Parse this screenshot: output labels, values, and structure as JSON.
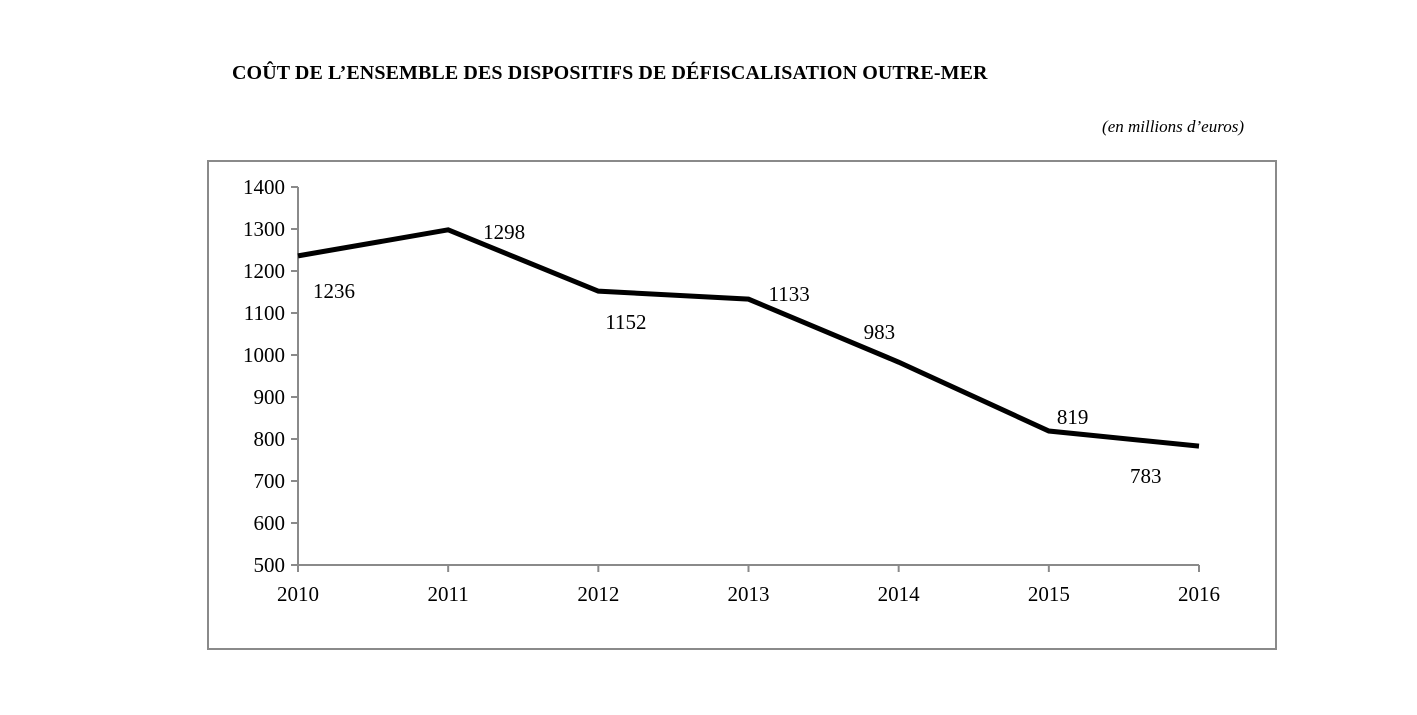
{
  "chart_data": {
    "type": "line",
    "title": "COÛT DE L’ENSEMBLE DES DISPOSITIFS DE DÉFISCALISATION OUTRE-MER",
    "subtitle": "(en millions d’euros)",
    "xlabel": "",
    "ylabel": "",
    "categories": [
      "2010",
      "2011",
      "2012",
      "2013",
      "2014",
      "2015",
      "2016"
    ],
    "series": [
      {
        "name": "Coût",
        "values": [
          1236,
          1298,
          1152,
          1133,
          983,
          819,
          783
        ]
      }
    ],
    "data_labels": [
      "1236",
      "1298",
      "1152",
      "1133",
      "983",
      "819",
      "783"
    ],
    "ylim": [
      500,
      1400
    ],
    "y_ticks": [
      "500",
      "600",
      "700",
      "800",
      "900",
      "1000",
      "1100",
      "1200",
      "1300",
      "1400"
    ],
    "grid": false,
    "legend": "none",
    "line_color": "#000000",
    "axis_color": "#8a8a8a"
  }
}
